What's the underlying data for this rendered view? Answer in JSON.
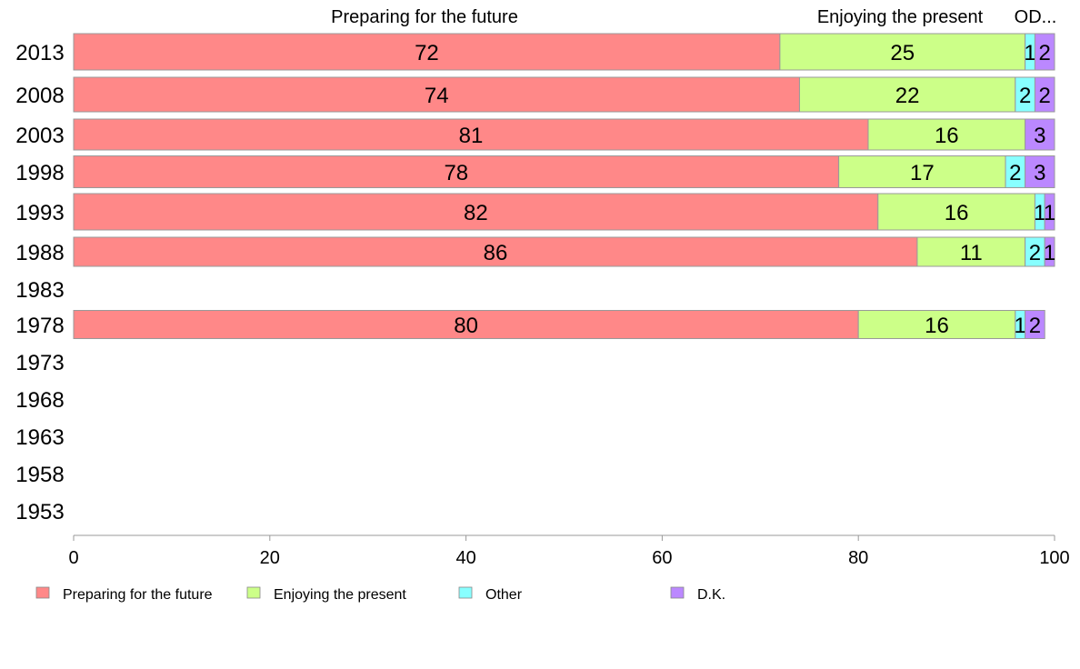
{
  "chart_data": {
    "type": "bar",
    "orientation": "horizontal",
    "stacked": true,
    "column_headers": [
      "Preparing for the future",
      "Enjoying the present",
      "OD..."
    ],
    "categories": [
      "2013",
      "2008",
      "2003",
      "1998",
      "1993",
      "1988",
      "1983",
      "1978",
      "1973",
      "1968",
      "1963",
      "1958",
      "1953"
    ],
    "series": [
      {
        "name": "Preparing for the future",
        "color": "#ff8888",
        "values": [
          72,
          74,
          81,
          78,
          82,
          86,
          null,
          80,
          null,
          null,
          null,
          null,
          null
        ]
      },
      {
        "name": "Enjoying the present",
        "color": "#ccff88",
        "values": [
          25,
          22,
          16,
          17,
          16,
          11,
          null,
          16,
          null,
          null,
          null,
          null,
          null
        ]
      },
      {
        "name": "Other",
        "color": "#88ffff",
        "values": [
          1,
          2,
          0,
          2,
          1,
          2,
          null,
          1,
          null,
          null,
          null,
          null,
          null
        ]
      },
      {
        "name": "D.K.",
        "color": "#bb88ff",
        "values": [
          2,
          2,
          3,
          3,
          1,
          1,
          null,
          2,
          null,
          null,
          null,
          null,
          null
        ]
      }
    ],
    "xlim": [
      0,
      100
    ],
    "xticks": [
      "0",
      "20",
      "40",
      "60",
      "80",
      "100"
    ],
    "grid": false,
    "legend_position": "bottom"
  }
}
